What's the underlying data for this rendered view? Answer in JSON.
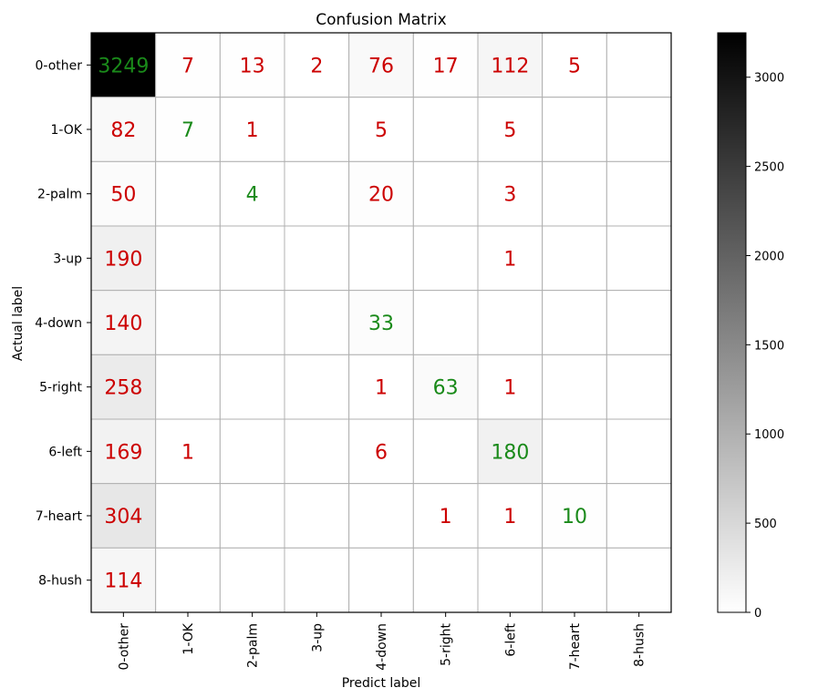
{
  "chart_data": {
    "type": "heatmap",
    "title": "Confusion Matrix",
    "xlabel": "Predict label",
    "ylabel": "Actual label",
    "x_categories": [
      "0-other",
      "1-OK",
      "2-palm",
      "3-up",
      "4-down",
      "5-right",
      "6-left",
      "7-heart",
      "8-hush"
    ],
    "y_categories": [
      "0-other",
      "1-OK",
      "2-palm",
      "3-up",
      "4-down",
      "5-right",
      "6-left",
      "7-heart",
      "8-hush"
    ],
    "values": [
      [
        3249,
        7,
        13,
        2,
        76,
        17,
        112,
        5,
        0
      ],
      [
        82,
        7,
        1,
        0,
        5,
        0,
        5,
        0,
        0
      ],
      [
        50,
        0,
        4,
        0,
        20,
        0,
        3,
        0,
        0
      ],
      [
        190,
        0,
        0,
        0,
        0,
        0,
        1,
        0,
        0
      ],
      [
        140,
        0,
        0,
        0,
        33,
        0,
        0,
        0,
        0
      ],
      [
        258,
        0,
        0,
        0,
        1,
        63,
        1,
        0,
        0
      ],
      [
        169,
        1,
        0,
        0,
        6,
        0,
        180,
        0,
        0
      ],
      [
        304,
        0,
        0,
        0,
        0,
        1,
        1,
        10,
        0
      ],
      [
        114,
        0,
        0,
        0,
        0,
        0,
        0,
        0,
        0
      ]
    ],
    "zero_values_labeled": false,
    "colormap": "grayscale (white = 0, black = max)",
    "color_range": [
      0,
      3249
    ],
    "colorbar_ticks": [
      0,
      500,
      1000,
      1500,
      2000,
      2500,
      3000
    ],
    "colors": {
      "diagonal_text": "#1a8a1a",
      "off_diagonal_text": "#cc0000",
      "grid": "#b0b0b0",
      "axes": "#000000"
    },
    "grid": true
  }
}
